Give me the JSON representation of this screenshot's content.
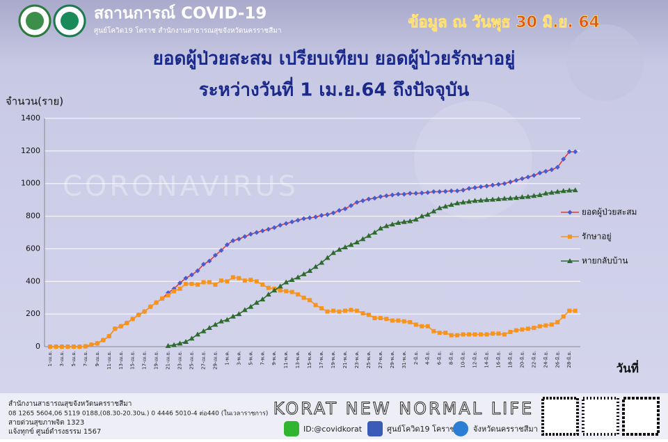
{
  "header": {
    "title": "สถานการณ์ COVID-19",
    "subtitle": "ศูนย์โควิด19 โคราช สำนักงานสาธารณสุขจังหวัดนครราชสีมา",
    "date": "ข้อมูล ณ วันพุธ 30 มิ.ย. 64"
  },
  "watermark": "CORONAVIRUS",
  "chart_data": {
    "type": "line",
    "title": "ยอดผู้ป่วยสะสม เปรียบเทียบ ยอดผู้ป่วยรักษาอยู่",
    "subtitle": "ระหว่างวันที่ 1 เม.ย.64 ถึงปัจจุบัน",
    "y_label": "จำนวน(ราย)",
    "x_label": "วันที่",
    "categories": [
      "1-เม.ย.",
      null,
      "3-เม.ย.",
      null,
      "5-เม.ย.",
      null,
      "7-เม.ย.",
      null,
      "9-เม.ย.",
      null,
      "11-เม.ย.",
      null,
      "13-เม.ย.",
      null,
      "15-เม.ย.",
      null,
      "17-เม.ย.",
      null,
      "19-เม.ย.",
      null,
      "21-เม.ย.",
      null,
      "23-เม.ย.",
      null,
      "25-เม.ย.",
      null,
      "27-เม.ย.",
      null,
      "29-เม.ย.",
      null,
      "1-พ.ค.",
      null,
      "3-พ.ค.",
      null,
      "5-พ.ค.",
      null,
      "7-พ.ค.",
      null,
      "9-พ.ค.",
      null,
      "11-พ.ค.",
      null,
      "13-พ.ค.",
      null,
      "15-พ.ค.",
      null,
      "17-พ.ค.",
      null,
      "19-พ.ค.",
      null,
      "21-พ.ค.",
      null,
      "23-พ.ค.",
      null,
      "25-พ.ค.",
      null,
      "27-พ.ค.",
      null,
      "29-พ.ค.",
      null,
      "31-พ.ค.",
      null,
      "2-มิ.ย.",
      null,
      "4-มิ.ย.",
      null,
      "6-มิ.ย.",
      null,
      "8-มิ.ย.",
      null,
      "10-มิ.ย.",
      null,
      "12-มิ.ย.",
      null,
      "14-มิ.ย.",
      null,
      "16-มิ.ย.",
      null,
      "18-มิ.ย.",
      null,
      "20-มิ.ย.",
      null,
      "22-มิ.ย.",
      null,
      "24-มิ.ย.",
      null,
      "26-มิ.ย.",
      null,
      "28-มิ.ย.",
      null
    ],
    "series": [
      {
        "name": "ยอดผู้ป่วยสะสม",
        "color": "#e03a3a",
        "marker_color": "#4a5bd0",
        "marker": "diamond",
        "values": [
          0,
          0,
          0,
          0,
          0,
          0,
          2,
          12,
          20,
          40,
          64,
          110,
          125,
          145,
          170,
          195,
          215,
          245,
          270,
          295,
          330,
          355,
          390,
          420,
          440,
          465,
          505,
          525,
          560,
          590,
          625,
          650,
          660,
          675,
          690,
          700,
          710,
          720,
          730,
          745,
          755,
          765,
          775,
          785,
          790,
          795,
          805,
          810,
          820,
          835,
          845,
          865,
          885,
          895,
          905,
          910,
          920,
          925,
          930,
          935,
          935,
          940,
          940,
          942,
          945,
          950,
          950,
          952,
          955,
          955,
          960,
          970,
          975,
          980,
          985,
          990,
          995,
          1000,
          1010,
          1020,
          1030,
          1040,
          1050,
          1065,
          1075,
          1085,
          1100,
          1150,
          1195,
          1195
        ]
      },
      {
        "name": "รักษาอยู่",
        "color": "#f7941d",
        "marker_color": "#f7941d",
        "marker": "square",
        "values": [
          0,
          0,
          0,
          0,
          0,
          0,
          2,
          12,
          20,
          40,
          64,
          110,
          125,
          145,
          170,
          195,
          215,
          245,
          270,
          295,
          315,
          340,
          355,
          385,
          385,
          380,
          395,
          395,
          380,
          405,
          400,
          425,
          420,
          405,
          410,
          400,
          380,
          360,
          355,
          345,
          340,
          335,
          320,
          300,
          285,
          255,
          235,
          215,
          220,
          215,
          220,
          225,
          220,
          205,
          195,
          175,
          175,
          170,
          160,
          160,
          155,
          150,
          135,
          125,
          125,
          95,
          85,
          85,
          70,
          70,
          75,
          75,
          75,
          75,
          75,
          80,
          80,
          75,
          90,
          100,
          105,
          110,
          115,
          125,
          130,
          135,
          150,
          185,
          220,
          220
        ]
      },
      {
        "name": "หายกลับบ้าน",
        "color": "#2e6b2e",
        "marker_color": "#2e6b2e",
        "marker": "triangle",
        "values": [
          null,
          null,
          null,
          null,
          null,
          null,
          null,
          null,
          null,
          null,
          null,
          null,
          null,
          null,
          null,
          null,
          null,
          null,
          null,
          null,
          5,
          10,
          20,
          30,
          50,
          75,
          95,
          115,
          135,
          155,
          165,
          185,
          200,
          225,
          245,
          270,
          290,
          320,
          345,
          370,
          395,
          410,
          425,
          445,
          465,
          490,
          515,
          545,
          575,
          595,
          610,
          625,
          640,
          660,
          680,
          700,
          725,
          740,
          750,
          760,
          765,
          770,
          780,
          800,
          810,
          830,
          850,
          860,
          870,
          880,
          885,
          890,
          895,
          897,
          900,
          902,
          905,
          908,
          910,
          913,
          917,
          920,
          925,
          930,
          940,
          945,
          950,
          955,
          958,
          960
        ]
      }
    ],
    "ylim": [
      0,
      1400
    ],
    "yticks": [
      0,
      200,
      400,
      600,
      800,
      1000,
      1200,
      1400
    ],
    "grid": true,
    "legend": "right"
  },
  "footer": {
    "office": "สำนักงานสาธารณสุขจังหวัดนครราชสีมา",
    "phones": "08 1265 5604,06 5119 0188,(08.30-20.30น.) 0 4446 5010-4 ต่อ440 (ในเวลาราชการ)",
    "hotline": "สายด่วนสุขภาพจิต 1323",
    "complaint": "แจ้งทุกข์ ศูนย์ดำรงธรรม 1567",
    "slogan": "KORAT NEW NORMAL LIFE",
    "line_id": "ID:@covidkorat",
    "facebook": "ศูนย์โควิด19 โคราช",
    "website": "จังหวัดนครราชสีมา"
  }
}
